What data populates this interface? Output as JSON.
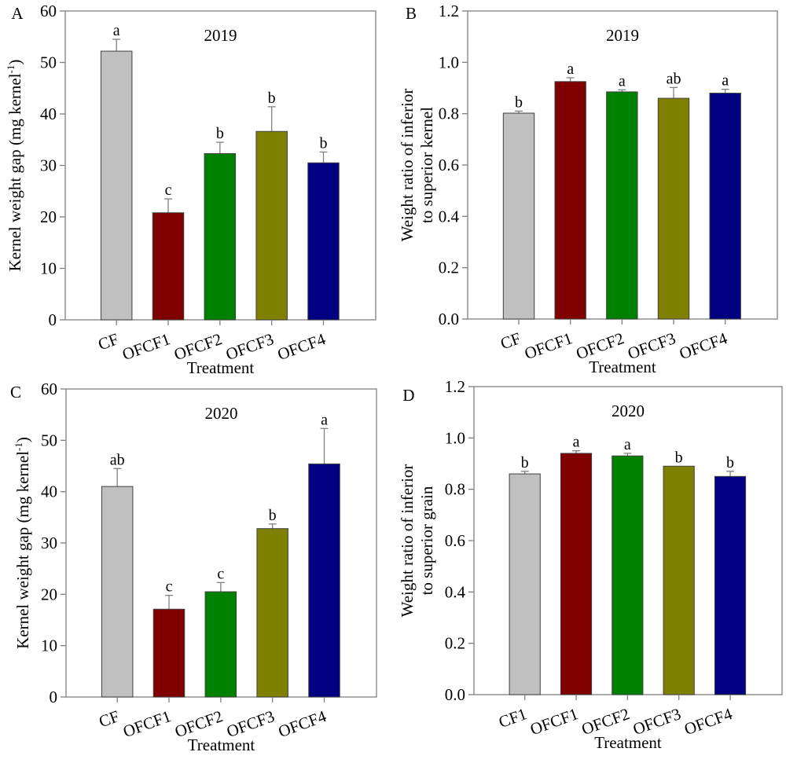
{
  "chart_data": [
    {
      "type": "bar",
      "panel_label": "A",
      "title": "2019",
      "ylabel": "Kernel weight gap (mg kernel",
      "ylabel_sup": "-1",
      "ylabel_suffix": ")",
      "xlabel": "Treatment",
      "categories": [
        "CF",
        "OFCF1",
        "OFCF2",
        "OFCF3",
        "OFCF4"
      ],
      "values": [
        52.2,
        20.8,
        32.3,
        36.6,
        30.5
      ],
      "error_upper": [
        54.5,
        23.5,
        34.5,
        41.4,
        32.6
      ],
      "letters": [
        "a",
        "c",
        "b",
        "b",
        "b"
      ],
      "ylim": [
        0,
        60
      ],
      "yticks": [
        "0",
        "10",
        "20",
        "30",
        "40",
        "50",
        "60"
      ],
      "ytick_values": [
        0,
        10,
        20,
        30,
        40,
        50,
        60
      ]
    },
    {
      "type": "bar",
      "panel_label": "B",
      "title": "2019",
      "ylabel": "Weight ratio of inferior",
      "ylabel2": "to superior kernel",
      "xlabel": "Treatment",
      "categories": [
        "CF",
        "OFCF1",
        "OFCF2",
        "OFCF3",
        "OFCF4"
      ],
      "values": [
        0.802,
        0.925,
        0.885,
        0.86,
        0.88
      ],
      "error_upper": [
        0.81,
        0.94,
        0.893,
        0.902,
        0.895
      ],
      "letters": [
        "b",
        "a",
        "a",
        "ab",
        "a"
      ],
      "ylim": [
        0,
        1.2
      ],
      "yticks": [
        "0.0",
        "0.2",
        "0.4",
        "0.6",
        "0.8",
        "1.0",
        "1.2"
      ],
      "ytick_values": [
        0,
        0.2,
        0.4,
        0.6,
        0.8,
        1.0,
        1.2
      ]
    },
    {
      "type": "bar",
      "panel_label": "C",
      "title": "2020",
      "ylabel": "Kernel weight gap (mg kernel",
      "ylabel_sup": "-1",
      "ylabel_suffix": ")",
      "xlabel": "Treatment",
      "categories": [
        "CF",
        "OFCF1",
        "OFCF2",
        "OFCF3",
        "OFCF4"
      ],
      "values": [
        41.0,
        17.1,
        20.5,
        32.8,
        45.4
      ],
      "error_upper": [
        44.5,
        19.8,
        22.3,
        33.7,
        52.3
      ],
      "letters": [
        "ab",
        "c",
        "c",
        "b",
        "a"
      ],
      "ylim": [
        0,
        60
      ],
      "yticks": [
        "0",
        "10",
        "20",
        "30",
        "40",
        "50",
        "60"
      ],
      "ytick_values": [
        0,
        10,
        20,
        30,
        40,
        50,
        60
      ]
    },
    {
      "type": "bar",
      "panel_label": "D",
      "title": "2020",
      "ylabel": "Weight ratio of inferior",
      "ylabel2": "to superior grain",
      "xlabel": "Treatment",
      "categories": [
        "CF1",
        "OFCF1",
        "OFCF2",
        "OFCF3",
        "OFCF4"
      ],
      "values": [
        0.86,
        0.94,
        0.93,
        0.89,
        0.85
      ],
      "error_upper": [
        0.87,
        0.95,
        0.94,
        0.89,
        0.87
      ],
      "letters": [
        "b",
        "a",
        "a",
        "b",
        "b"
      ],
      "ylim": [
        0,
        1.2
      ],
      "yticks": [
        "0.0",
        "0.2",
        "0.4",
        "0.6",
        "0.8",
        "1.0",
        "1.2"
      ],
      "ytick_values": [
        0,
        0.2,
        0.4,
        0.6,
        0.8,
        1.0,
        1.2
      ]
    }
  ],
  "colors": [
    "#c0c0c0",
    "#800000",
    "#008000",
    "#808000",
    "#000080"
  ],
  "axis_color": "#808080"
}
